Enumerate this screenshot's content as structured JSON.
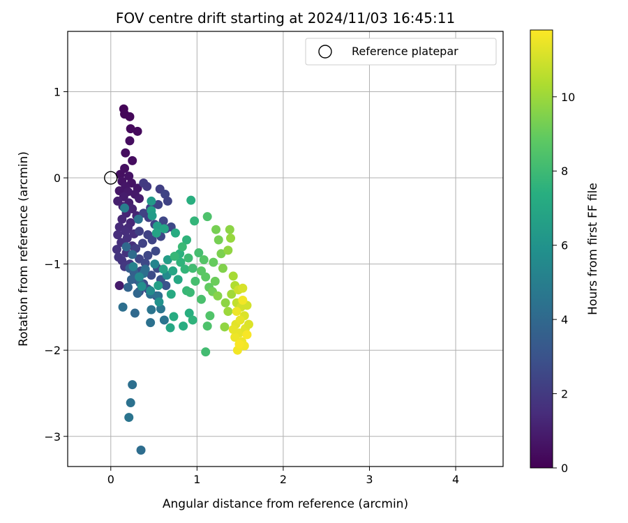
{
  "chart_data": {
    "type": "scatter",
    "title": "FOV centre drift starting at 2024/11/03 16:45:11",
    "xlabel": "Angular distance from reference (arcmin)",
    "ylabel": "Rotation from reference (arcmin)",
    "xlim": [
      -0.5,
      4.55
    ],
    "ylim": [
      -3.35,
      1.7
    ],
    "xticks": [
      0,
      1,
      2,
      3,
      4
    ],
    "yticks": [
      1,
      0,
      -1,
      -2,
      -3
    ],
    "grid": true,
    "legend": {
      "placement": "top-right",
      "entries": [
        "Reference platepar"
      ]
    },
    "reference_point": {
      "x": 0,
      "y": 0,
      "label": "Reference platepar"
    },
    "colorbar": {
      "label": "Hours from first FF file",
      "range": [
        0,
        11.8
      ],
      "ticks": [
        0,
        2,
        4,
        6,
        8,
        10
      ],
      "colormap": "viridis"
    },
    "points": [
      [
        0.15,
        0.8,
        0.1
      ],
      [
        0.22,
        0.71,
        0.2
      ],
      [
        0.16,
        0.74,
        0.2
      ],
      [
        0.23,
        0.57,
        0.3
      ],
      [
        0.31,
        0.54,
        0.3
      ],
      [
        0.22,
        0.43,
        0.4
      ],
      [
        0.17,
        0.29,
        0.4
      ],
      [
        0.25,
        0.2,
        0.4
      ],
      [
        0.16,
        0.11,
        0.5
      ],
      [
        0.11,
        0.04,
        0.5
      ],
      [
        0.21,
        0.02,
        0.6
      ],
      [
        0.13,
        -0.04,
        0.6
      ],
      [
        0.24,
        -0.06,
        0.6
      ],
      [
        0.17,
        -0.1,
        0.7
      ],
      [
        0.31,
        -0.12,
        0.7
      ],
      [
        0.1,
        -0.15,
        0.7
      ],
      [
        0.2,
        -0.16,
        0.8
      ],
      [
        0.28,
        -0.19,
        0.8
      ],
      [
        0.15,
        -0.22,
        0.9
      ],
      [
        0.33,
        -0.24,
        0.9
      ],
      [
        0.08,
        -0.27,
        1.0
      ],
      [
        0.21,
        -0.29,
        1.0
      ],
      [
        0.14,
        -0.33,
        1.1
      ],
      [
        0.25,
        -0.36,
        1.1
      ],
      [
        0.18,
        -0.41,
        1.2
      ],
      [
        0.3,
        -0.44,
        1.2
      ],
      [
        0.13,
        -0.48,
        1.3
      ],
      [
        0.23,
        -0.52,
        1.3
      ],
      [
        0.1,
        -0.57,
        1.4
      ],
      [
        0.2,
        -0.58,
        1.4
      ],
      [
        0.17,
        -0.62,
        1.5
      ],
      [
        0.27,
        -0.65,
        1.5
      ],
      [
        0.08,
        -0.66,
        1.5
      ],
      [
        0.19,
        -0.7,
        1.6
      ],
      [
        0.12,
        -0.75,
        1.6
      ],
      [
        0.25,
        -0.79,
        1.6
      ],
      [
        0.07,
        -0.83,
        1.7
      ],
      [
        0.18,
        -0.87,
        1.7
      ],
      [
        0.09,
        -0.92,
        1.8
      ],
      [
        0.13,
        -0.96,
        1.8
      ],
      [
        0.22,
        -1.0,
        1.9
      ],
      [
        0.16,
        -1.03,
        1.9
      ],
      [
        0.1,
        -1.25,
        0.9
      ],
      [
        0.38,
        -0.06,
        2.0
      ],
      [
        0.42,
        -0.1,
        2.0
      ],
      [
        0.57,
        -0.13,
        2.2
      ],
      [
        0.63,
        -0.19,
        2.4
      ],
      [
        0.66,
        -0.27,
        2.3
      ],
      [
        0.55,
        -0.31,
        2.4
      ],
      [
        0.46,
        -0.35,
        2.3
      ],
      [
        0.38,
        -0.41,
        2.3
      ],
      [
        0.44,
        -0.46,
        2.2
      ],
      [
        0.61,
        -0.5,
        2.5
      ],
      [
        0.51,
        -0.54,
        2.4
      ],
      [
        0.7,
        -0.57,
        2.6
      ],
      [
        0.64,
        -0.59,
        2.5
      ],
      [
        0.33,
        -0.62,
        2.2
      ],
      [
        0.43,
        -0.66,
        2.3
      ],
      [
        0.58,
        -0.68,
        2.5
      ],
      [
        0.48,
        -0.72,
        2.4
      ],
      [
        0.37,
        -0.76,
        2.3
      ],
      [
        0.29,
        -0.82,
        2.1
      ],
      [
        0.52,
        -0.85,
        2.6
      ],
      [
        0.43,
        -0.9,
        2.5
      ],
      [
        0.33,
        -0.94,
        2.4
      ],
      [
        0.4,
        -0.99,
        2.6
      ],
      [
        0.54,
        -1.05,
        2.7
      ],
      [
        0.35,
        -1.08,
        2.5
      ],
      [
        0.47,
        -1.13,
        2.7
      ],
      [
        0.3,
        -1.18,
        2.6
      ],
      [
        0.38,
        -1.23,
        2.8
      ],
      [
        0.43,
        -1.29,
        2.7
      ],
      [
        0.33,
        -1.32,
        2.8
      ],
      [
        0.58,
        -1.18,
        2.9
      ],
      [
        0.64,
        -1.25,
        3.0
      ],
      [
        0.53,
        -1.37,
        2.9
      ],
      [
        0.22,
        -1.05,
        3.5
      ],
      [
        0.27,
        -1.1,
        3.6
      ],
      [
        0.24,
        -1.18,
        3.7
      ],
      [
        0.2,
        -1.27,
        3.8
      ],
      [
        0.31,
        -1.34,
        3.9
      ],
      [
        0.34,
        -1.22,
        4.0
      ],
      [
        0.18,
        -0.8,
        4.0
      ],
      [
        0.25,
        -0.89,
        4.1
      ],
      [
        0.4,
        -1.06,
        4.2
      ],
      [
        0.46,
        -1.35,
        4.3
      ],
      [
        0.55,
        -1.37,
        4.4
      ],
      [
        0.28,
        -1.57,
        4.0
      ],
      [
        0.47,
        -1.53,
        4.5
      ],
      [
        0.62,
        -1.65,
        4.5
      ],
      [
        0.14,
        -1.5,
        4.3
      ],
      [
        0.46,
        -1.68,
        4.4
      ],
      [
        0.58,
        -1.52,
        4.6
      ],
      [
        0.38,
        -1.11,
        4.3
      ],
      [
        0.32,
        -0.48,
        4.5
      ],
      [
        0.25,
        -2.4,
        4.3
      ],
      [
        0.23,
        -2.61,
        4.4
      ],
      [
        0.21,
        -2.78,
        4.5
      ],
      [
        0.35,
        -3.16,
        4.2
      ],
      [
        0.16,
        -0.35,
        5.0
      ],
      [
        0.26,
        -1.03,
        5.2
      ],
      [
        0.33,
        -1.15,
        5.5
      ],
      [
        0.36,
        -1.26,
        5.8
      ],
      [
        0.46,
        -1.31,
        5.6
      ],
      [
        0.56,
        -1.44,
        5.9
      ],
      [
        0.51,
        -1.0,
        5.3
      ],
      [
        0.65,
        -1.13,
        5.6
      ],
      [
        0.47,
        -0.27,
        6.3
      ],
      [
        0.54,
        -0.56,
        6.5
      ],
      [
        0.62,
        -0.59,
        6.8
      ],
      [
        0.47,
        -0.38,
        6.6
      ],
      [
        0.48,
        -0.44,
        6.4
      ],
      [
        0.53,
        -0.64,
        6.8
      ],
      [
        0.66,
        -0.95,
        6.5
      ],
      [
        0.61,
        -1.06,
        6.7
      ],
      [
        0.55,
        -1.25,
        6.6
      ],
      [
        0.72,
        -1.08,
        6.9
      ],
      [
        0.78,
        -1.18,
        7.0
      ],
      [
        0.7,
        -1.35,
        7.1
      ],
      [
        0.73,
        -1.61,
        7.2
      ],
      [
        0.69,
        -1.74,
        7.0
      ],
      [
        0.84,
        -1.72,
        7.3
      ],
      [
        0.91,
        -1.57,
        7.4
      ],
      [
        0.75,
        -0.64,
        7.2
      ],
      [
        0.8,
        -0.88,
        7.5
      ],
      [
        0.88,
        -0.72,
        7.6
      ],
      [
        0.93,
        -0.26,
        7.4
      ],
      [
        0.97,
        -0.5,
        7.7
      ],
      [
        0.81,
        -0.98,
        7.6
      ],
      [
        0.86,
        -1.06,
        7.7
      ],
      [
        0.88,
        -1.31,
        7.8
      ],
      [
        0.92,
        -1.33,
        7.9
      ],
      [
        0.95,
        -1.65,
        7.6
      ],
      [
        0.74,
        -0.91,
        7.8
      ],
      [
        0.83,
        -0.8,
        7.9
      ],
      [
        0.9,
        -0.93,
        8.0
      ],
      [
        0.95,
        -1.05,
        8.1
      ],
      [
        1.02,
        -0.87,
        8.2
      ],
      [
        0.98,
        -1.2,
        8.2
      ],
      [
        1.05,
        -1.41,
        8.3
      ],
      [
        1.1,
        -2.02,
        8.1
      ],
      [
        1.12,
        -1.72,
        8.4
      ],
      [
        1.15,
        -1.6,
        8.5
      ],
      [
        1.08,
        -0.95,
        8.6
      ],
      [
        1.12,
        -0.45,
        8.4
      ],
      [
        1.05,
        -1.08,
        8.7
      ],
      [
        1.1,
        -1.15,
        8.8
      ],
      [
        1.14,
        -1.27,
        8.9
      ],
      [
        1.19,
        -0.98,
        9.0
      ],
      [
        1.21,
        -1.2,
        9.1
      ],
      [
        1.18,
        -1.32,
        9.2
      ],
      [
        1.25,
        -0.72,
        9.3
      ],
      [
        1.28,
        -0.88,
        9.4
      ],
      [
        1.22,
        -0.6,
        9.3
      ],
      [
        1.3,
        -1.05,
        9.5
      ],
      [
        1.24,
        -1.37,
        9.6
      ],
      [
        1.33,
        -1.45,
        9.7
      ],
      [
        1.36,
        -0.84,
        9.8
      ],
      [
        1.38,
        -0.6,
        9.7
      ],
      [
        1.39,
        -0.7,
        9.9
      ],
      [
        1.32,
        -1.73,
        9.8
      ],
      [
        1.36,
        -1.55,
        10.0
      ],
      [
        1.4,
        -1.35,
        10.1
      ],
      [
        1.42,
        -1.14,
        10.2
      ],
      [
        1.44,
        -1.25,
        10.4
      ],
      [
        1.46,
        -1.45,
        10.7
      ],
      [
        1.48,
        -1.3,
        10.9
      ],
      [
        1.51,
        -1.5,
        11.0
      ],
      [
        1.53,
        -1.28,
        11.1
      ],
      [
        1.55,
        -1.6,
        11.2
      ],
      [
        1.58,
        -1.48,
        11.0
      ],
      [
        1.45,
        -1.7,
        11.3
      ],
      [
        1.49,
        -1.8,
        11.4
      ],
      [
        1.52,
        -1.9,
        11.5
      ],
      [
        1.55,
        -1.95,
        11.6
      ],
      [
        1.47,
        -2.0,
        11.6
      ],
      [
        1.44,
        -1.85,
        11.5
      ],
      [
        1.5,
        -1.65,
        11.4
      ],
      [
        1.56,
        -1.75,
        11.3
      ],
      [
        1.6,
        -1.7,
        11.2
      ],
      [
        1.58,
        -1.82,
        11.7
      ],
      [
        1.53,
        -1.42,
        11.6
      ],
      [
        1.46,
        -1.55,
        11.5
      ],
      [
        1.42,
        -1.76,
        11.4
      ],
      [
        1.49,
        -1.93,
        11.7
      ]
    ]
  }
}
